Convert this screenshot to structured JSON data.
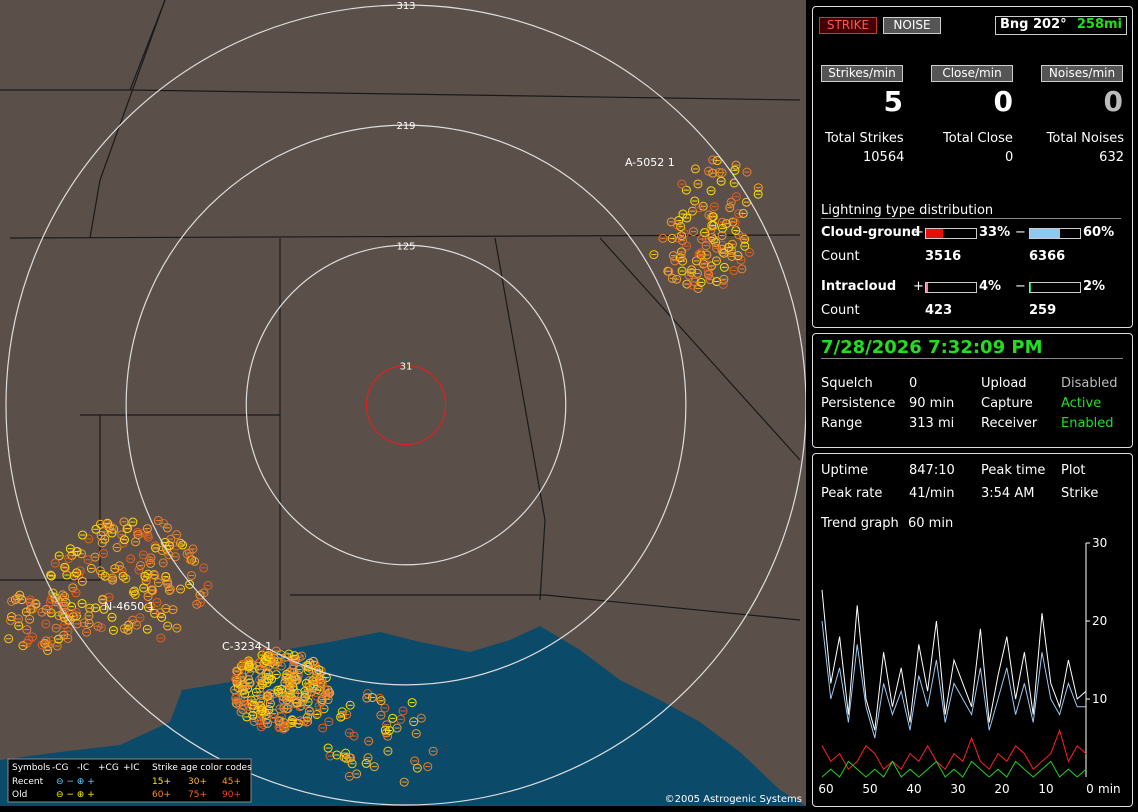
{
  "map": {
    "rings": [
      31,
      125,
      219,
      313
    ],
    "stations": [
      "A-5052 1",
      "N-4650 1",
      "C-3234 1"
    ],
    "legend": {
      "symbols": "Symbols",
      "cg_neg": "-CG",
      "ic_neg": "-IC",
      "cg_pos": "+CG",
      "ic_pos": "+IC",
      "age_title": "Strike age color codes",
      "recent": "Recent",
      "old": "Old",
      "recent_ages": [
        "15+",
        "30+",
        "45+"
      ],
      "old_ages": [
        "60+",
        "75+",
        "90+"
      ]
    },
    "copyright": "©2005 Astrogenic Systems"
  },
  "top": {
    "strike": "STRIKE",
    "noise": "NOISE",
    "bearing": "Bng 202°",
    "distance": "258mi"
  },
  "rates": [
    {
      "label": "Strikes/min",
      "value": 5
    },
    {
      "label": "Close/min",
      "value": 0
    },
    {
      "label": "Noises/min",
      "value": 0
    }
  ],
  "totals": [
    {
      "label": "Total Strikes",
      "value": 10564
    },
    {
      "label": "Total Close",
      "value": 0
    },
    {
      "label": "Total Noises",
      "value": 632
    }
  ],
  "distribution": {
    "title": "Lightning type distribution",
    "count_label": "Count",
    "rows": [
      {
        "name": "Cloud-ground",
        "pos_sign": "+",
        "pos": {
          "value": 33,
          "label": "33%"
        },
        "neg_sign": "−",
        "neg": {
          "value": 60,
          "label": "60%"
        },
        "pos_count": 3516,
        "neg_count": 6366
      },
      {
        "name": "Intracloud",
        "pos_sign": "+",
        "pos": {
          "value": 4,
          "label": "4%"
        },
        "neg_sign": "−",
        "neg": {
          "value": 2,
          "label": "2%"
        },
        "pos_count": 423,
        "neg_count": 259
      }
    ]
  },
  "datetime": "7/28/2026 7:32:09 PM",
  "status": [
    [
      "Squelch",
      "0",
      "Upload",
      "Disabled"
    ],
    [
      "Persistence",
      "90 min",
      "Capture",
      "Active"
    ],
    [
      "Range",
      "313 mi",
      "Receiver",
      "Enabled"
    ]
  ],
  "stats": [
    [
      "Uptime",
      "847:10",
      "Peak time",
      "Plot"
    ],
    [
      "Peak rate",
      "41/min",
      "3:54 AM",
      "Strike"
    ]
  ],
  "trend": {
    "label": "Trend graph",
    "window": "60 min",
    "unit": "min",
    "ylim": [
      0,
      30
    ],
    "yticks": [
      10,
      20,
      30
    ],
    "xlim": [
      60,
      0
    ],
    "xticks": [
      60,
      50,
      40,
      30,
      20,
      10,
      0
    ],
    "x": [
      60,
      58,
      56,
      54,
      52,
      50,
      48,
      46,
      44,
      42,
      40,
      38,
      36,
      34,
      32,
      30,
      28,
      26,
      24,
      22,
      20,
      18,
      16,
      14,
      12,
      10,
      8,
      6,
      4,
      2,
      0
    ],
    "series": [
      {
        "color": "#ffffff",
        "values": [
          24,
          12,
          18,
          8,
          22,
          10,
          6,
          16,
          9,
          14,
          7,
          17,
          11,
          20,
          8,
          15,
          12,
          9,
          19,
          7,
          13,
          18,
          10,
          16,
          8,
          21,
          12,
          9,
          15,
          10,
          11
        ]
      },
      {
        "color": "#9cc8f0",
        "values": [
          20,
          10,
          14,
          7,
          17,
          9,
          5,
          12,
          8,
          11,
          6,
          13,
          9,
          15,
          7,
          12,
          10,
          8,
          14,
          6,
          10,
          14,
          8,
          12,
          7,
          16,
          10,
          8,
          12,
          9,
          9
        ]
      },
      {
        "color": "#ff2020",
        "values": [
          4,
          2,
          3,
          1,
          2,
          4,
          3,
          1,
          2,
          1,
          3,
          2,
          4,
          2,
          1,
          3,
          2,
          5,
          2,
          1,
          3,
          2,
          4,
          3,
          1,
          2,
          3,
          6,
          2,
          4,
          3
        ]
      },
      {
        "color": "#20d020",
        "values": [
          0,
          1,
          0,
          2,
          1,
          0,
          1,
          0,
          2,
          0,
          1,
          0,
          1,
          2,
          0,
          1,
          0,
          2,
          1,
          0,
          1,
          0,
          2,
          1,
          0,
          1,
          2,
          0,
          1,
          0,
          1
        ]
      }
    ]
  }
}
